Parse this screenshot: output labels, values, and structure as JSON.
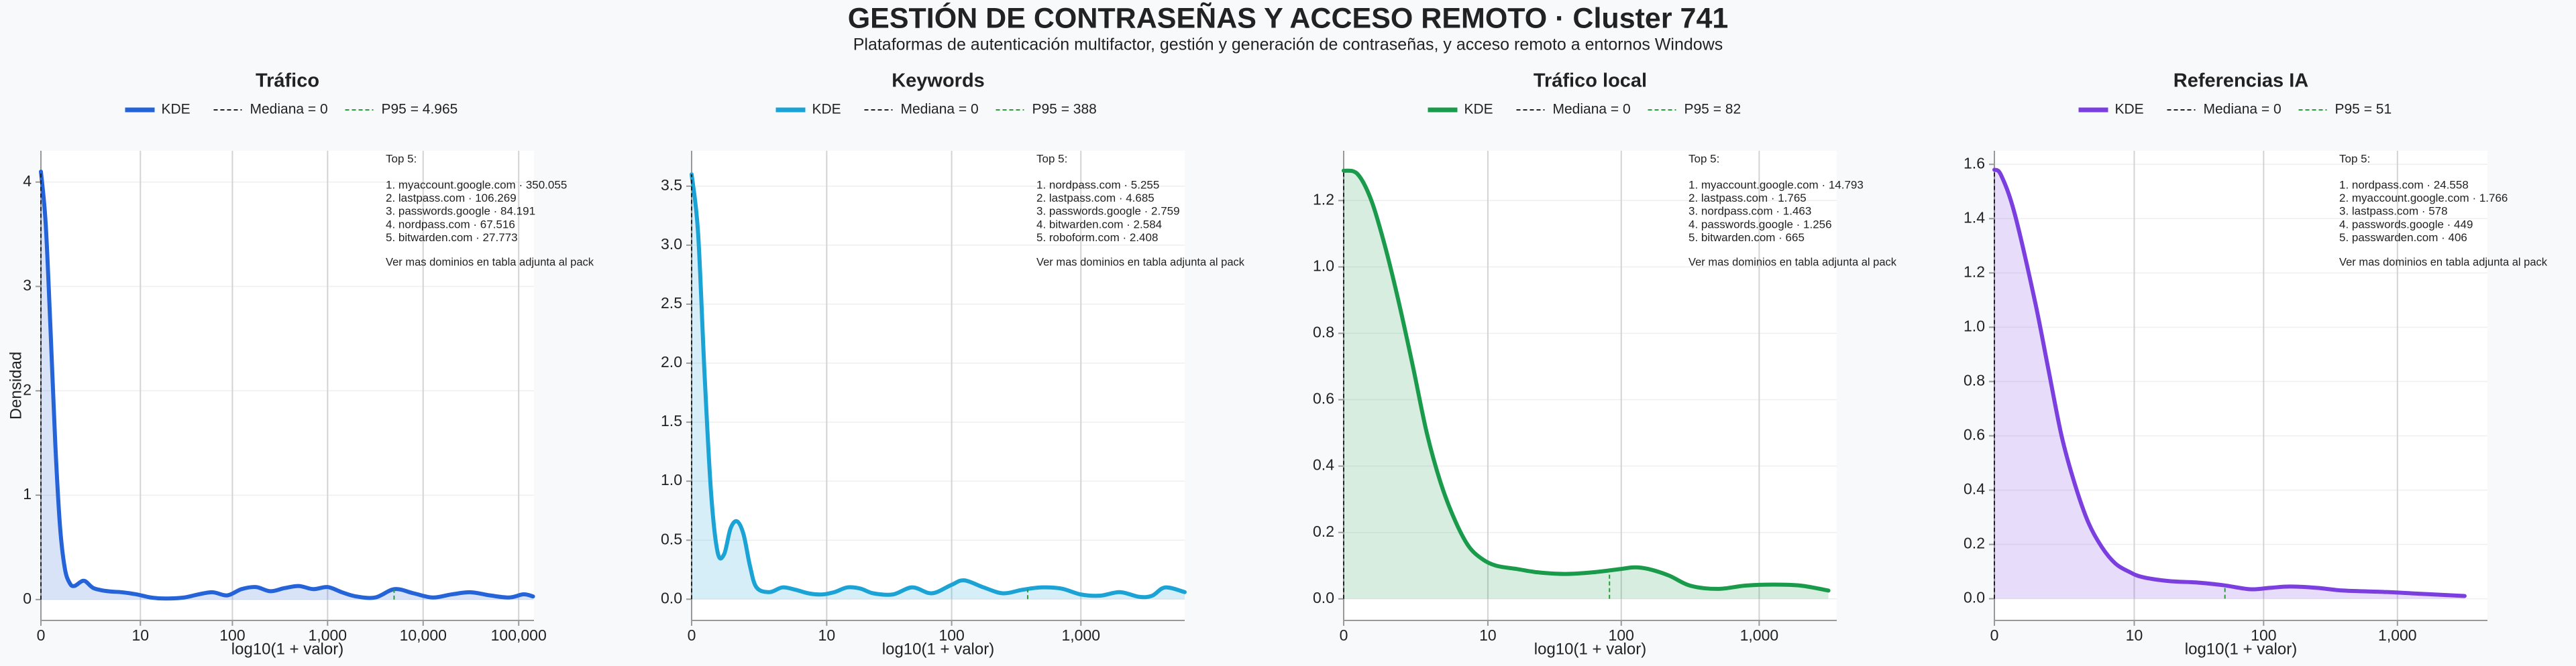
{
  "title": "GESTIÓN DE CONTRASEÑAS Y ACCESO REMOTO · Cluster 741",
  "subtitle": "Plataformas de autenticación multifactor, gestión y generación de contraseñas, y acceso remoto a entornos Windows",
  "chart_data": [
    {
      "type": "area",
      "title": "Tráfico",
      "x_label": "log10(1 + valor)",
      "y_label": "Densidad",
      "grid": true,
      "x": [
        0,
        0.05,
        0.1,
        0.15,
        0.2,
        0.25,
        0.3,
        0.35,
        0.45,
        0.55,
        0.7,
        0.85,
        1.0,
        1.15,
        1.3,
        1.5,
        1.65,
        1.8,
        1.95,
        2.1,
        2.25,
        2.4,
        2.55,
        2.7,
        2.85,
        3.0,
        3.15,
        3.3,
        3.5,
        3.7,
        3.9,
        4.1,
        4.3,
        4.5,
        4.7,
        4.9,
        5.05,
        5.15
      ],
      "series": [
        {
          "name": "KDE",
          "color": "#2563d9",
          "values": [
            4.1,
            3.6,
            2.6,
            1.5,
            0.7,
            0.3,
            0.16,
            0.13,
            0.18,
            0.11,
            0.08,
            0.07,
            0.05,
            0.02,
            0.01,
            0.02,
            0.05,
            0.07,
            0.04,
            0.1,
            0.12,
            0.08,
            0.11,
            0.13,
            0.1,
            0.12,
            0.07,
            0.03,
            0.02,
            0.1,
            0.06,
            0.02,
            0.05,
            0.07,
            0.04,
            0.02,
            0.05,
            0.03
          ]
        }
      ],
      "median": {
        "label": "Mediana = 0",
        "value": 0,
        "color": "#222222"
      },
      "p95": {
        "label": "P95 = 4.965",
        "value": 4965,
        "color": "#2a9d3a"
      },
      "xlim": [
        0,
        5.16
      ],
      "ylim": [
        -0.2,
        4.3
      ],
      "xticks": [
        0,
        {
          "value": 1.041,
          "label": "10"
        },
        {
          "value": 2.004,
          "label": "100"
        },
        {
          "value": 3.0,
          "label": "1,000"
        },
        {
          "value": 4.0,
          "label": "10,000"
        },
        {
          "value": 5.0,
          "label": "100,000"
        }
      ],
      "yticks": [
        0,
        1,
        2,
        3,
        4
      ],
      "annotation": {
        "title": "Top 5:",
        "items": [
          "1. myaccount.google.com · 350.055",
          "2. lastpass.com · 106.269",
          "3. passwords.google · 84.191",
          "4. nordpass.com · 67.516",
          "5. bitwarden.com · 27.773"
        ],
        "note": "Ver mas dominios en tabla adjunta al pack"
      }
    },
    {
      "type": "area",
      "title": "Keywords",
      "x_label": "log10(1 + valor)",
      "grid": true,
      "x": [
        0,
        0.05,
        0.1,
        0.15,
        0.2,
        0.25,
        0.3,
        0.35,
        0.4,
        0.45,
        0.5,
        0.6,
        0.7,
        0.8,
        0.9,
        1.0,
        1.1,
        1.2,
        1.3,
        1.4,
        1.55,
        1.7,
        1.85,
        2.0,
        2.1,
        2.25,
        2.4,
        2.55,
        2.7,
        2.85,
        3.0,
        3.15,
        3.3,
        3.45,
        3.55,
        3.65,
        3.8
      ],
      "series": [
        {
          "name": "KDE",
          "color": "#1ba3d6",
          "values": [
            3.6,
            3.1,
            1.9,
            0.9,
            0.4,
            0.38,
            0.6,
            0.66,
            0.55,
            0.28,
            0.1,
            0.06,
            0.1,
            0.08,
            0.05,
            0.04,
            0.06,
            0.1,
            0.09,
            0.05,
            0.04,
            0.1,
            0.05,
            0.12,
            0.16,
            0.1,
            0.05,
            0.08,
            0.1,
            0.09,
            0.04,
            0.03,
            0.06,
            0.02,
            0.03,
            0.1,
            0.06
          ]
        }
      ],
      "median": {
        "label": "Mediana = 0",
        "value": 0,
        "color": "#222222"
      },
      "p95": {
        "label": "P95 = 388",
        "value": 388,
        "color": "#2a9d3a"
      },
      "xlim": [
        0,
        3.8
      ],
      "ylim": [
        -0.18,
        3.8
      ],
      "xticks": [
        0,
        {
          "value": 1.041,
          "label": "10"
        },
        {
          "value": 2.004,
          "label": "100"
        },
        {
          "value": 3.0,
          "label": "1,000"
        }
      ],
      "yticks": [
        {
          "value": 0,
          "label": "0.0"
        },
        0.5,
        {
          "value": 1,
          "label": "1.0"
        },
        1.5,
        {
          "value": 2,
          "label": "2.0"
        },
        2.5,
        {
          "value": 3,
          "label": "3.0"
        },
        3.5
      ],
      "annotation": {
        "title": "Top 5:",
        "items": [
          "1. nordpass.com · 5.255",
          "2. lastpass.com · 4.685",
          "3. passwords.google · 2.759",
          "4. bitwarden.com · 2.584",
          "5. roboform.com · 2.408"
        ],
        "note": "Ver mas dominios en tabla adjunta al pack"
      }
    },
    {
      "type": "area",
      "title": "Tráfico local",
      "x_label": "log10(1 + valor)",
      "grid": true,
      "x": [
        0,
        0.1,
        0.2,
        0.3,
        0.4,
        0.5,
        0.6,
        0.7,
        0.8,
        0.9,
        1.0,
        1.1,
        1.25,
        1.4,
        1.6,
        1.8,
        2.0,
        2.1,
        2.2,
        2.35,
        2.5,
        2.7,
        2.9,
        3.1,
        3.3,
        3.5
      ],
      "series": [
        {
          "name": "KDE",
          "color": "#1a9b4b",
          "values": [
            1.29,
            1.28,
            1.2,
            1.06,
            0.89,
            0.7,
            0.5,
            0.35,
            0.24,
            0.16,
            0.12,
            0.1,
            0.09,
            0.08,
            0.075,
            0.08,
            0.09,
            0.095,
            0.09,
            0.07,
            0.04,
            0.03,
            0.04,
            0.043,
            0.04,
            0.025
          ]
        }
      ],
      "median": {
        "label": "Mediana = 0",
        "value": 0,
        "color": "#222222"
      },
      "p95": {
        "label": "P95 = 82",
        "value": 82,
        "color": "#2a9d3a"
      },
      "xlim": [
        0,
        3.56
      ],
      "ylim": [
        -0.065,
        1.35
      ],
      "xticks": [
        0,
        {
          "value": 1.041,
          "label": "10"
        },
        {
          "value": 2.004,
          "label": "100"
        },
        {
          "value": 3.0,
          "label": "1,000"
        }
      ],
      "yticks": [
        {
          "value": 0,
          "label": "0.0"
        },
        0.2,
        0.4,
        0.6,
        0.8,
        {
          "value": 1,
          "label": "1.0"
        },
        1.2
      ],
      "annotation": {
        "title": "Top 5:",
        "items": [
          "1. myaccount.google.com · 14.793",
          "2. lastpass.com · 1.765",
          "3. nordpass.com · 1.463",
          "4. passwords.google · 1.256",
          "5. bitwarden.com · 665"
        ],
        "note": "Ver mas dominios en tabla adjunta al pack"
      }
    },
    {
      "type": "area",
      "title": "Referencias IA",
      "x_label": "log10(1 + valor)",
      "grid": true,
      "x": [
        0,
        0.05,
        0.15,
        0.3,
        0.4,
        0.5,
        0.6,
        0.7,
        0.8,
        0.9,
        1.0,
        1.1,
        1.3,
        1.5,
        1.7,
        1.9,
        2.05,
        2.2,
        2.4,
        2.6,
        2.9,
        3.1,
        3.3,
        3.5
      ],
      "series": [
        {
          "name": "KDE",
          "color": "#7b3fe0",
          "values": [
            1.58,
            1.56,
            1.42,
            1.1,
            0.85,
            0.6,
            0.42,
            0.28,
            0.19,
            0.13,
            0.1,
            0.08,
            0.065,
            0.06,
            0.05,
            0.035,
            0.04,
            0.045,
            0.04,
            0.03,
            0.025,
            0.02,
            0.015,
            0.01
          ]
        }
      ],
      "median": {
        "label": "Mediana = 0",
        "value": 0,
        "color": "#222222"
      },
      "p95": {
        "label": "P95 = 51",
        "value": 51,
        "color": "#2a9d3a"
      },
      "xlim": [
        0,
        3.67
      ],
      "ylim": [
        -0.08,
        1.65
      ],
      "xticks": [
        0,
        {
          "value": 1.041,
          "label": "10"
        },
        {
          "value": 2.004,
          "label": "100"
        },
        {
          "value": 3.0,
          "label": "1,000"
        }
      ],
      "yticks": [
        {
          "value": 0,
          "label": "0.0"
        },
        0.2,
        0.4,
        0.6,
        0.8,
        {
          "value": 1,
          "label": "1.0"
        },
        1.2,
        1.4,
        1.6
      ],
      "annotation": {
        "title": "Top 5:",
        "items": [
          "1. nordpass.com · 24.558",
          "2. myaccount.google.com · 1.766",
          "3. lastpass.com · 578",
          "4. passwords.google · 449",
          "5. passwarden.com · 406"
        ],
        "note": "Ver mas dominios en tabla adjunta al pack"
      }
    }
  ]
}
